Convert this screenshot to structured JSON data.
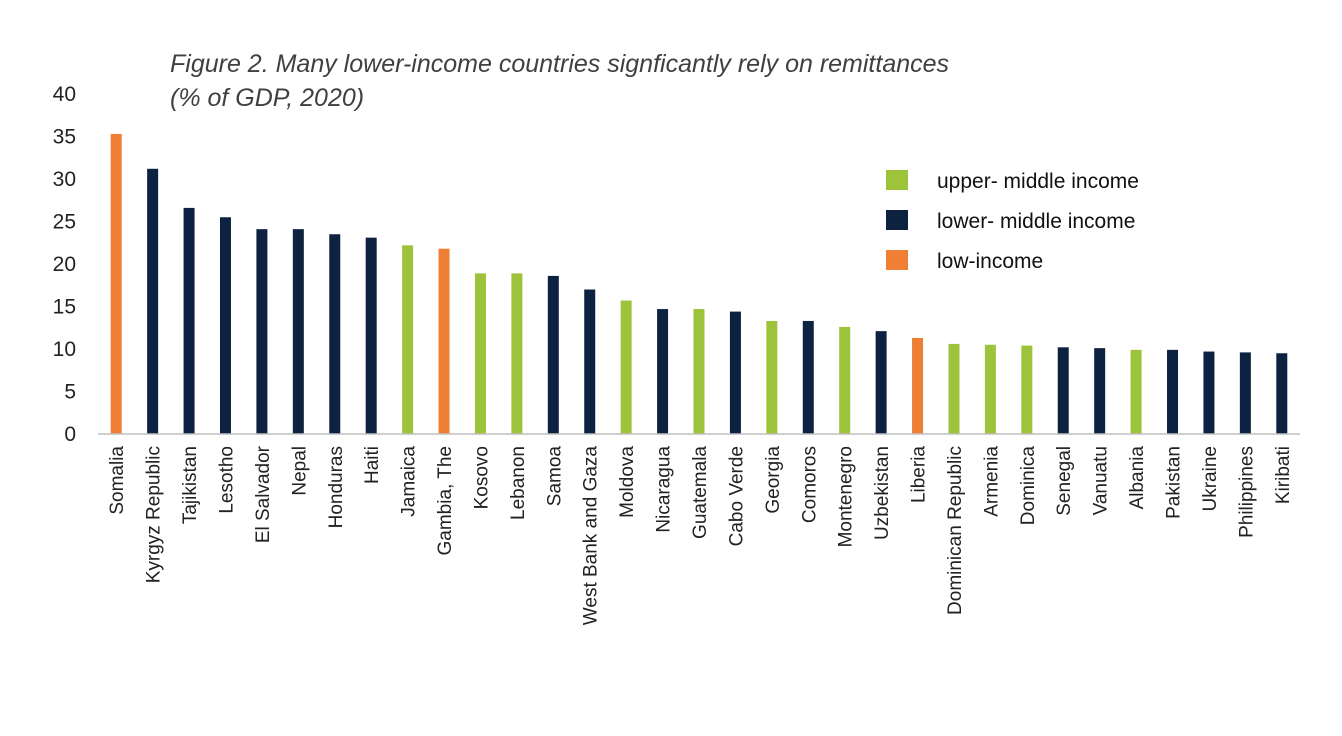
{
  "chart_data": {
    "type": "bar",
    "title_lines": [
      "Figure 2. Many lower-income countries signficantly rely on remittances",
      "(% of GDP, 2020)"
    ],
    "xlabel": "",
    "ylabel": "",
    "ylim": [
      0,
      40
    ],
    "yticks": [
      0,
      5,
      10,
      15,
      20,
      25,
      30,
      35,
      40
    ],
    "grid": false,
    "legend_position": "top-right",
    "legend": [
      {
        "key": "upper",
        "label": "upper- middle income",
        "color": "#9dc33b"
      },
      {
        "key": "lower",
        "label": "lower- middle income",
        "color": "#0d2240"
      },
      {
        "key": "low",
        "label": "low-income",
        "color": "#ee7f35"
      }
    ],
    "categories": [
      "Somalia",
      "Kyrgyz Republic",
      "Tajikistan",
      "Lesotho",
      "El Salvador",
      "Nepal",
      "Honduras",
      "Haiti",
      "Jamaica",
      "Gambia, The",
      "Kosovo",
      "Lebanon",
      "Samoa",
      "West Bank and Gaza",
      "Moldova",
      "Nicaragua",
      "Guatemala",
      "Cabo Verde",
      "Georgia",
      "Comoros",
      "Montenegro",
      "Uzbekistan",
      "Liberia",
      "Dominican Republic",
      "Armenia",
      "Dominica",
      "Senegal",
      "Vanuatu",
      "Albania",
      "Pakistan",
      "Ukraine",
      "Philippines",
      "Kiribati"
    ],
    "values": [
      35.3,
      31.2,
      26.6,
      25.5,
      24.1,
      24.1,
      23.5,
      23.1,
      22.2,
      21.8,
      18.9,
      18.9,
      18.6,
      17.0,
      15.7,
      14.7,
      14.7,
      14.4,
      13.3,
      13.3,
      12.6,
      12.1,
      11.3,
      10.6,
      10.5,
      10.4,
      10.2,
      10.1,
      9.9,
      9.9,
      9.7,
      9.6,
      9.5
    ],
    "groups": [
      "low",
      "lower",
      "lower",
      "lower",
      "lower",
      "lower",
      "lower",
      "lower",
      "upper",
      "low",
      "upper",
      "upper",
      "lower",
      "lower",
      "upper",
      "lower",
      "upper",
      "lower",
      "upper",
      "lower",
      "upper",
      "lower",
      "low",
      "upper",
      "upper",
      "upper",
      "lower",
      "lower",
      "upper",
      "lower",
      "lower",
      "lower",
      "lower"
    ]
  }
}
